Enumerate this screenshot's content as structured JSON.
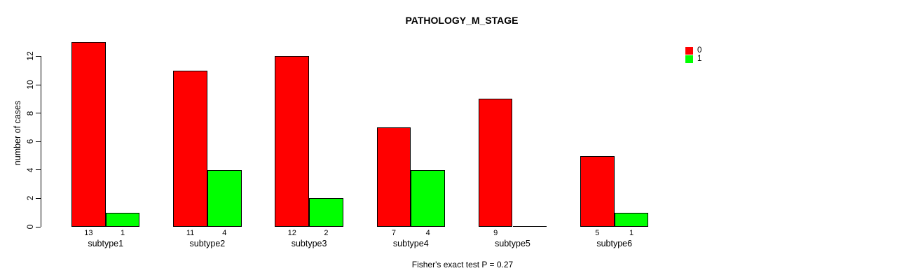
{
  "chart_data": {
    "type": "bar",
    "title": "PATHOLOGY_M_STAGE",
    "ylabel": "number of cases",
    "xlabel": "",
    "categories": [
      "subtype1",
      "subtype2",
      "subtype3",
      "subtype4",
      "subtype5",
      "subtype6"
    ],
    "series": [
      {
        "name": "0",
        "color": "#FF0000",
        "values": [
          13,
          11,
          12,
          7,
          9,
          5
        ],
        "bar_labels": [
          "13",
          "11",
          "12",
          "7",
          "9",
          "5"
        ]
      },
      {
        "name": "1",
        "color": "#00FF00",
        "values": [
          1,
          4,
          2,
          4,
          0,
          1
        ],
        "bar_labels": [
          "1",
          "4",
          "2",
          "4",
          "",
          "1"
        ]
      }
    ],
    "yticks": [
      0,
      2,
      4,
      6,
      8,
      10,
      12
    ],
    "ylim": [
      0,
      13
    ],
    "grid": false,
    "legend_position": "top-right",
    "annotation": "Fisher's exact test P = 0.27",
    "colors": {
      "background": "#FFFFFF",
      "axis": "#000000",
      "text": "#000000"
    }
  }
}
